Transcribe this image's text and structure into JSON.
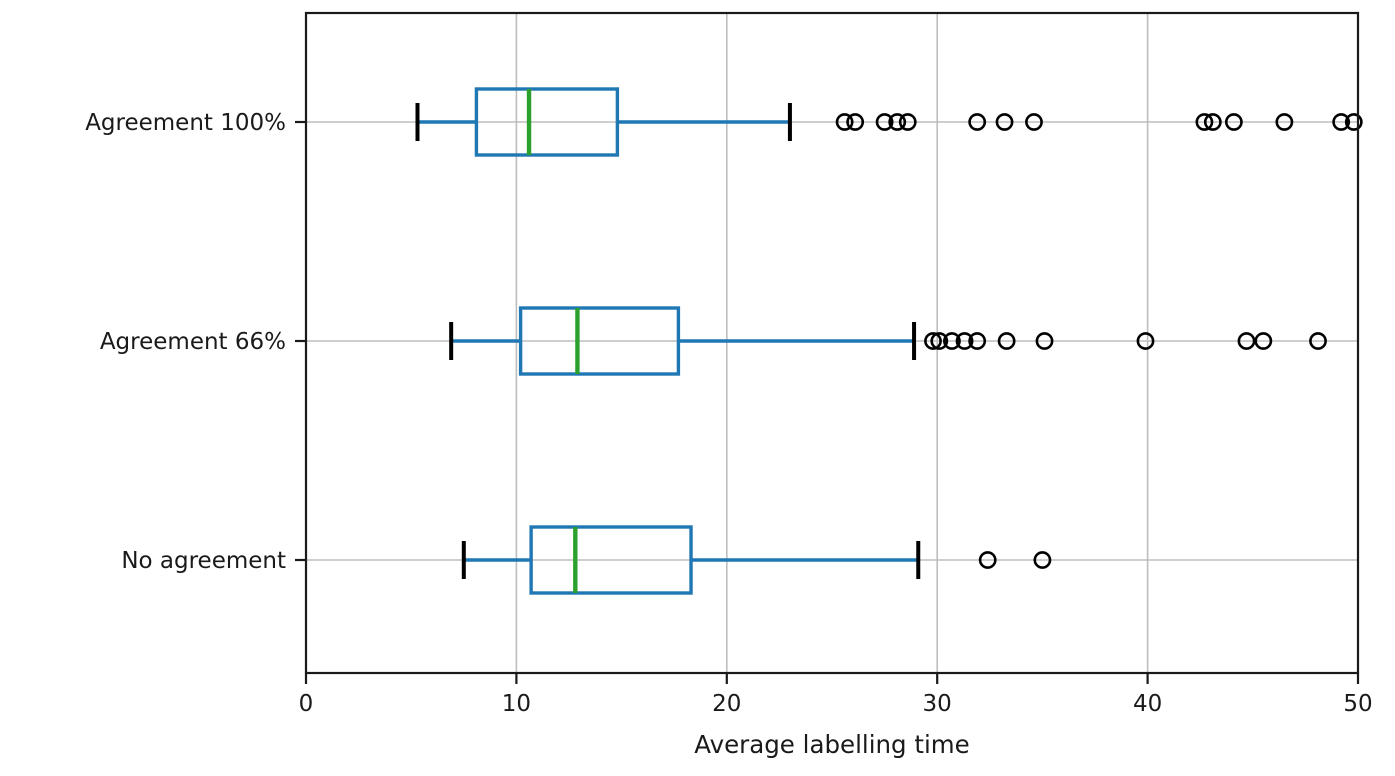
{
  "chart_data": {
    "type": "boxplot",
    "orientation": "horizontal",
    "title": "",
    "xlabel": "Average labelling time",
    "ylabel": "",
    "xlim": [
      0,
      50
    ],
    "xticks": [
      0,
      10,
      20,
      30,
      40,
      50
    ],
    "grid": true,
    "legend": "none",
    "categories": [
      "Agreement 100%",
      "Agreement 66%",
      "No agreement"
    ],
    "series": [
      {
        "category": "Agreement 100%",
        "whisker_low": 5.3,
        "q1": 8.1,
        "median": 10.6,
        "q3": 14.8,
        "whisker_high": 23.0,
        "outliers": [
          25.6,
          26.1,
          27.5,
          28.1,
          28.6,
          31.9,
          33.2,
          34.6,
          42.7,
          43.1,
          44.1,
          46.5,
          49.2,
          49.8
        ]
      },
      {
        "category": "Agreement 66%",
        "whisker_low": 6.9,
        "q1": 10.2,
        "median": 12.9,
        "q3": 17.7,
        "whisker_high": 28.9,
        "outliers": [
          29.8,
          30.1,
          30.7,
          31.3,
          31.9,
          33.3,
          35.1,
          39.9,
          44.7,
          45.5,
          48.1
        ]
      },
      {
        "category": "No agreement",
        "whisker_low": 7.5,
        "q1": 10.7,
        "median": 12.8,
        "q3": 18.3,
        "whisker_high": 29.1,
        "outliers": [
          32.4,
          35.0
        ]
      }
    ],
    "colors": {
      "box": "#1f77b4",
      "median": "#2ca02c",
      "whisker": "#1f77b4",
      "cap": "#000000",
      "outlier_stroke": "#000000",
      "grid": "#bdbdbd",
      "spine": "#1a1a1a",
      "background": "#ffffff"
    }
  }
}
